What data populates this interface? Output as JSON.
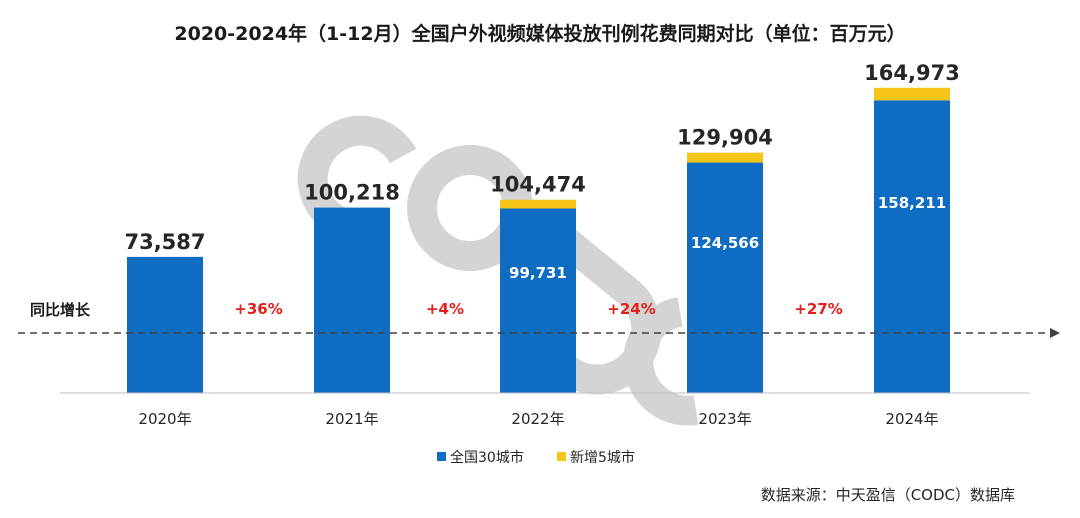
{
  "chart_data": {
    "type": "bar",
    "title": "2020-2024年（1-12月）全国户外视频媒体投放刊例花费同期对比（单位：百万元）",
    "categories": [
      "2020年",
      "2021年",
      "2022年",
      "2023年",
      "2024年"
    ],
    "series": [
      {
        "name": "全国30城市",
        "values": [
          73587,
          100218,
          99731,
          124566,
          158211
        ],
        "color": "#0e6cc3"
      },
      {
        "name": "新增5城市",
        "values": [
          0,
          0,
          4743,
          5338,
          6762
        ],
        "color": "#f5c518"
      }
    ],
    "totals": [
      "73,587",
      "100,218",
      "104,474",
      "129,904",
      "164,973"
    ],
    "inner_labels": [
      "",
      "",
      "99,731",
      "124,566",
      "158,211"
    ],
    "growth": {
      "label": "同比增长",
      "values": [
        "+36%",
        "+4%",
        "+24%",
        "+27%"
      ]
    },
    "ylim": [
      0,
      180000
    ],
    "watermark": "CODC",
    "source": "数据来源：中天盈信（CODC）数据库"
  }
}
